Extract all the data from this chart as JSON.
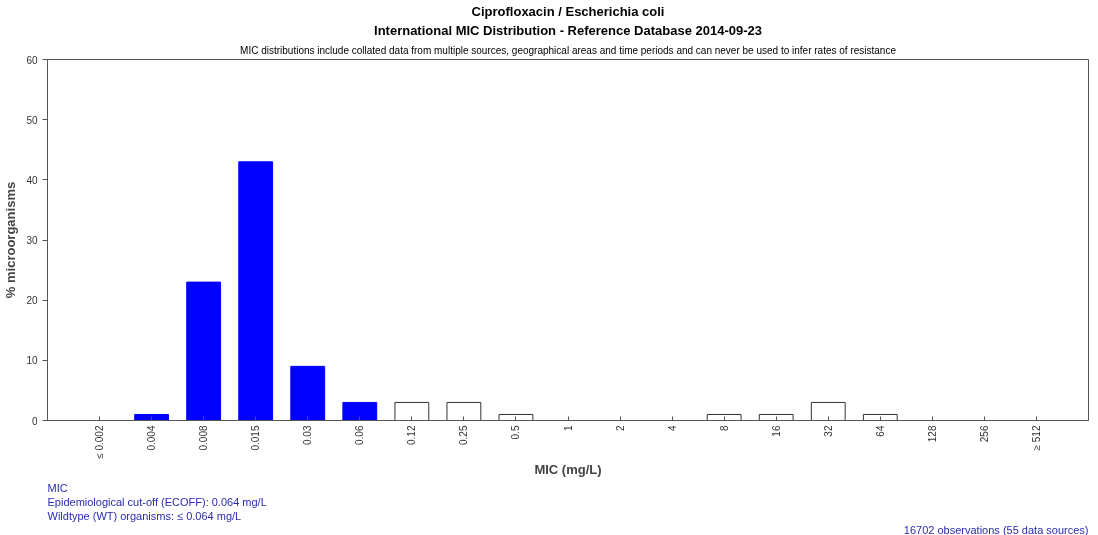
{
  "chart_data": {
    "type": "bar",
    "title": "Ciprofloxacin / Escherichia coli",
    "subtitle": "International MIC Distribution - Reference Database 2014-09-23",
    "xlabel": "MIC (mg/L)",
    "ylabel": "% microorganisms",
    "categories": [
      "≤ 0.002",
      "0.004",
      "0.008",
      "0.015",
      "0.03",
      "0.06",
      "0.12",
      "0.25",
      "0.5",
      "1",
      "2",
      "4",
      "8",
      "16",
      "32",
      "64",
      "128",
      "256",
      "≥ 512"
    ],
    "values": [
      0,
      1,
      23,
      43,
      9,
      3,
      3,
      3,
      1,
      0,
      0,
      0,
      1,
      1,
      3,
      1,
      0,
      0,
      0
    ],
    "colors": [
      "#0000ff",
      "#0000ff",
      "#0000ff",
      "#0000ff",
      "#0000ff",
      "#0000ff",
      "#ffffff",
      "#ffffff",
      "#ffffff",
      "#ffffff",
      "#ffffff",
      "#ffffff",
      "#ffffff",
      "#ffffff",
      "#ffffff",
      "#ffffff",
      "#ffffff",
      "#ffffff",
      "#ffffff"
    ],
    "ylim": [
      0,
      60
    ],
    "yticks": [
      0,
      10,
      20,
      30,
      40,
      50,
      60
    ],
    "grid": false,
    "annotations": [
      "MIC distributions include collated data from multiple sources, geographical areas and time periods and can never be used to infer rates of resistance",
      "MIC",
      "Epidemiological cut-off (ECOFF): 0.064 mg/L",
      "Wildtype (WT) organisms:  ≤ 0.064 mg/L",
      "16702 observations (55 data sources)"
    ]
  }
}
